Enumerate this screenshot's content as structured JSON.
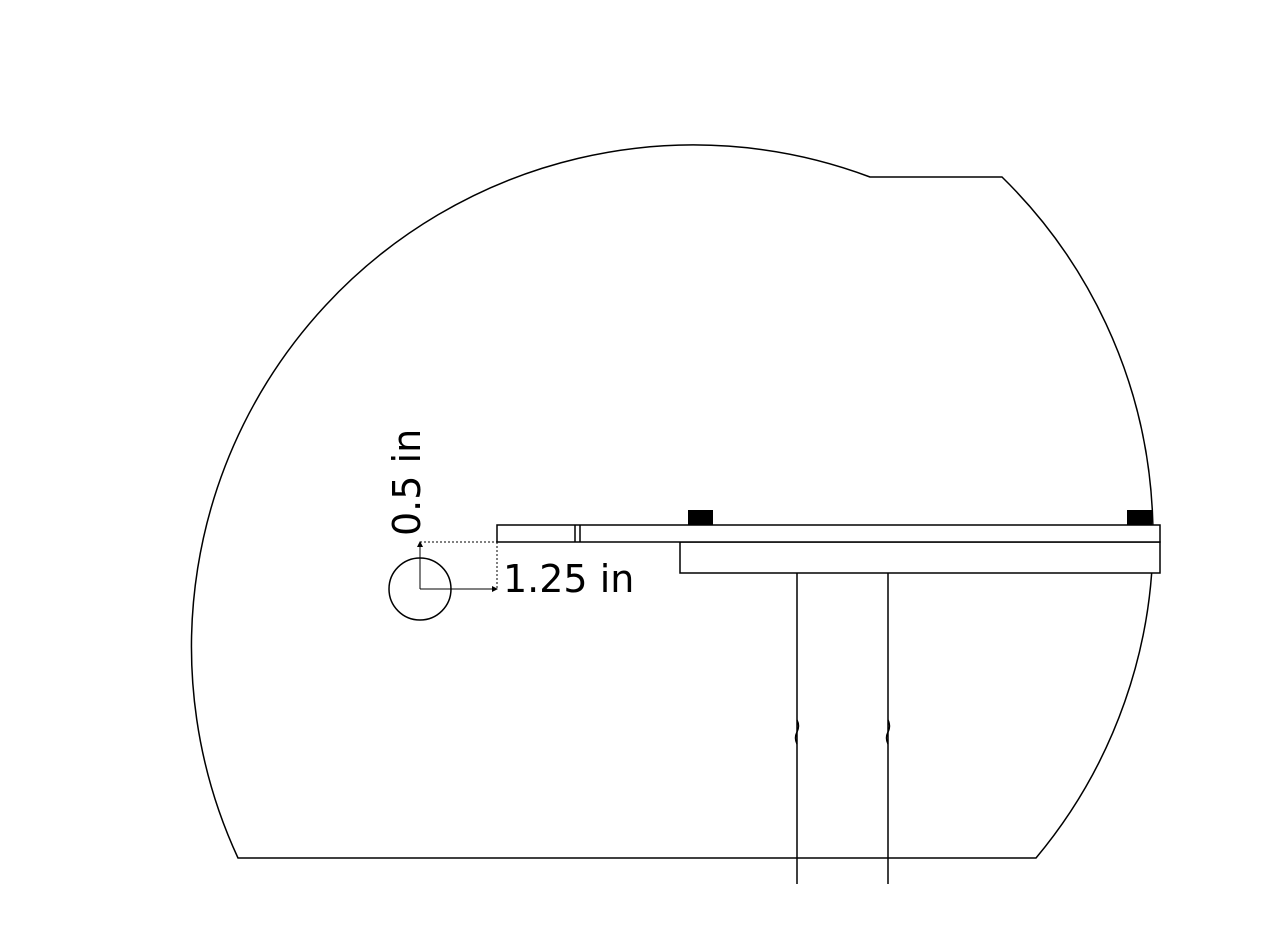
{
  "dimensions": {
    "horizontal_label": "1.25 in",
    "vertical_label": "0.5 in"
  },
  "colors": {
    "stroke": "#000000",
    "fill": "#ffffff",
    "block": "#000000"
  }
}
